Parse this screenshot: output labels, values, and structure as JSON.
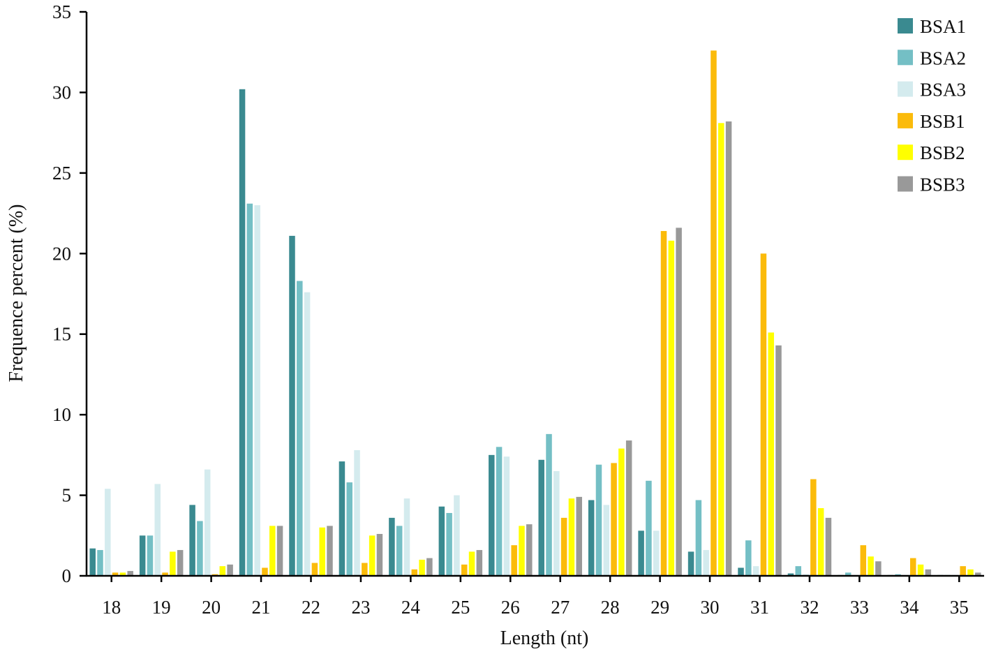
{
  "chart_data": {
    "type": "bar",
    "xlabel": "Length (nt)",
    "ylabel": "Frequence percent (%)",
    "ylim": [
      0,
      35
    ],
    "yticks": [
      0,
      5,
      10,
      15,
      20,
      25,
      30,
      35
    ],
    "grid": false,
    "legend_position": "top-right",
    "categories": [
      "18",
      "19",
      "20",
      "21",
      "22",
      "23",
      "24",
      "25",
      "26",
      "27",
      "28",
      "29",
      "30",
      "31",
      "32",
      "33",
      "34",
      "35"
    ],
    "series": [
      {
        "name": "BSA1",
        "color": "#3a8a90",
        "values": [
          1.7,
          2.5,
          4.4,
          30.2,
          21.1,
          7.1,
          3.6,
          4.3,
          7.5,
          7.2,
          4.7,
          2.8,
          1.5,
          0.5,
          0.15,
          0.05,
          0.05,
          0.05
        ]
      },
      {
        "name": "BSA2",
        "color": "#74bfc5",
        "values": [
          1.6,
          2.5,
          3.4,
          23.1,
          18.3,
          5.8,
          3.1,
          3.9,
          8.0,
          8.8,
          6.9,
          5.9,
          4.7,
          2.2,
          0.6,
          0.2,
          0.1,
          0.05
        ]
      },
      {
        "name": "BSA3",
        "color": "#d4ebee",
        "values": [
          5.4,
          5.7,
          6.6,
          23.0,
          17.6,
          7.8,
          4.8,
          5.0,
          7.4,
          6.5,
          4.4,
          2.8,
          1.6,
          0.6,
          0.1,
          0.05,
          0.05,
          0.05
        ]
      },
      {
        "name": "BSB1",
        "color": "#fbbb0b",
        "values": [
          0.2,
          0.2,
          0.1,
          0.5,
          0.8,
          0.8,
          0.4,
          0.7,
          1.9,
          3.6,
          7.0,
          21.4,
          32.6,
          20.0,
          6.0,
          1.9,
          1.1,
          0.6
        ]
      },
      {
        "name": "BSB2",
        "color": "#ffff00",
        "values": [
          0.2,
          1.5,
          0.6,
          3.1,
          3.0,
          2.5,
          1.0,
          1.5,
          3.1,
          4.8,
          7.9,
          20.8,
          28.1,
          15.1,
          4.2,
          1.2,
          0.7,
          0.4
        ]
      },
      {
        "name": "BSB3",
        "color": "#999999",
        "values": [
          0.3,
          1.6,
          0.7,
          3.1,
          3.1,
          2.6,
          1.1,
          1.6,
          3.2,
          4.9,
          8.4,
          21.6,
          28.2,
          14.3,
          3.6,
          0.9,
          0.4,
          0.2
        ]
      }
    ]
  }
}
